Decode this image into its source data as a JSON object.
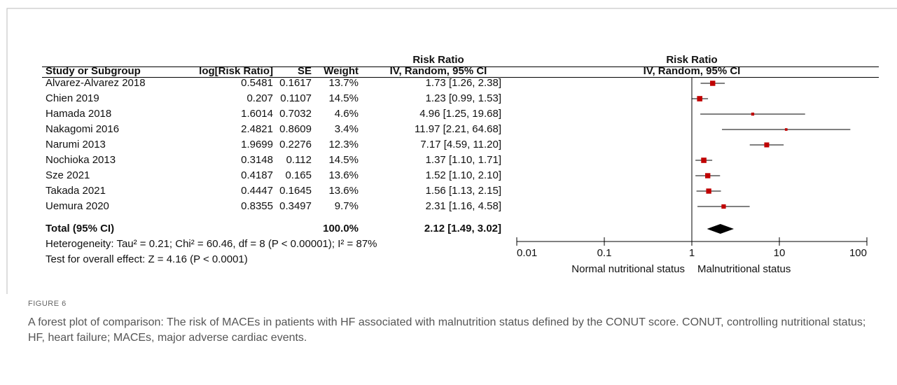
{
  "chart_data": {
    "type": "forest",
    "column_headers": [
      "Study or Subgroup",
      "log[Risk Ratio]",
      "SE",
      "Weight",
      "IV, Random, 95% CI"
    ],
    "group_header": "Risk Ratio",
    "plot_header": "Risk Ratio",
    "plot_subheader": "IV, Random, 95% CI",
    "studies": [
      "Alvarez-Alvarez 2018",
      "Chien 2019",
      "Hamada 2018",
      "Nakagomi 2016",
      "Narumi 2013",
      "Nochioka 2013",
      "Sze 2021",
      "Takada 2021",
      "Uemura 2020"
    ],
    "log_rr": [
      0.5481,
      0.207,
      1.6014,
      2.4821,
      1.9699,
      0.3148,
      0.4187,
      0.4447,
      0.8355
    ],
    "se": [
      0.1617,
      0.1107,
      0.7032,
      0.8609,
      0.2276,
      0.112,
      0.165,
      0.1645,
      0.3497
    ],
    "weight": [
      13.7,
      14.5,
      4.6,
      3.4,
      12.3,
      14.5,
      13.6,
      13.6,
      9.7
    ],
    "weight_labels": [
      "13.7%",
      "14.5%",
      "4.6%",
      "3.4%",
      "12.3%",
      "14.5%",
      "13.6%",
      "13.6%",
      "9.7%"
    ],
    "rr": [
      1.73,
      1.23,
      4.96,
      11.97,
      7.17,
      1.37,
      1.52,
      1.56,
      2.31
    ],
    "ci_low": [
      1.26,
      0.99,
      1.25,
      2.21,
      4.59,
      1.1,
      1.1,
      1.13,
      1.16
    ],
    "ci_high": [
      2.38,
      1.53,
      19.68,
      64.68,
      11.2,
      1.71,
      2.1,
      2.15,
      4.58
    ],
    "ci_labels": [
      "1.73 [1.26, 2.38]",
      "1.23 [0.99, 1.53]",
      "4.96 [1.25, 19.68]",
      "11.97 [2.21, 64.68]",
      "7.17 [4.59, 11.20]",
      "1.37 [1.10, 1.71]",
      "1.52 [1.10, 2.10]",
      "1.56 [1.13, 2.15]",
      "2.31 [1.16, 4.58]"
    ],
    "total": {
      "label": "Total (95% CI)",
      "weight": 100.0,
      "weight_label": "100.0%",
      "rr": 2.12,
      "ci_low": 1.49,
      "ci_high": 3.02,
      "ci_label": "2.12 [1.49, 3.02]"
    },
    "heterogeneity": "Heterogeneity: Tau² = 0.21; Chi² = 60.46, df = 8 (P < 0.00001); I² = 87%",
    "overall_effect": "Test for overall effect: Z = 4.16 (P < 0.0001)",
    "xscale": "log",
    "xlim": [
      0.01,
      100
    ],
    "xticks": [
      0.01,
      0.1,
      1,
      10,
      100
    ],
    "x_label_left": "Normal nutritional status",
    "x_label_right": "Malnutritional status",
    "marker_color": "#c00000",
    "diamond_color": "#000000"
  },
  "figure": {
    "label": "FIGURE 6",
    "caption": "A forest plot of comparison: The risk of MACEs in patients with HF associated with malnutrition status defined by the CONUT score. CONUT, controlling nutritional status; HF, heart failure; MACEs, major adverse cardiac events."
  }
}
